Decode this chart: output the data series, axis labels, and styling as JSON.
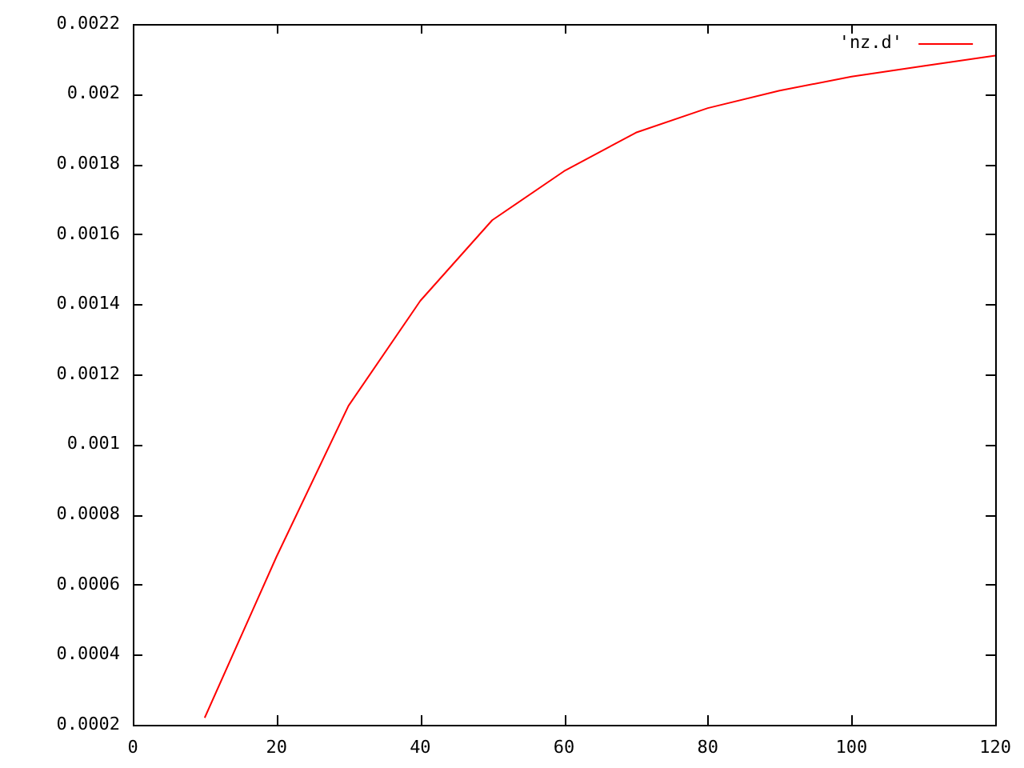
{
  "chart_data": {
    "type": "line",
    "x": [
      10,
      20,
      30,
      40,
      50,
      60,
      70,
      80,
      90,
      100,
      110,
      120
    ],
    "series": [
      {
        "name": "'nz.d'",
        "color": "#ff0000",
        "values": [
          0.00022,
          0.00068,
          0.00111,
          0.00141,
          0.00164,
          0.00178,
          0.00189,
          0.00196,
          0.00201,
          0.00205,
          0.00208,
          0.00211
        ]
      }
    ],
    "xlim": [
      0,
      120
    ],
    "xticks": [
      0,
      20,
      40,
      60,
      80,
      100,
      120
    ],
    "ylim": [
      0.0002,
      0.0022
    ],
    "yticks": [
      0.0002,
      0.0004,
      0.0006,
      0.0008,
      0.001,
      0.0012,
      0.0014,
      0.0016,
      0.0018,
      0.002,
      0.0022
    ],
    "legend": "top right",
    "marker": "none",
    "line_style": "solid"
  }
}
